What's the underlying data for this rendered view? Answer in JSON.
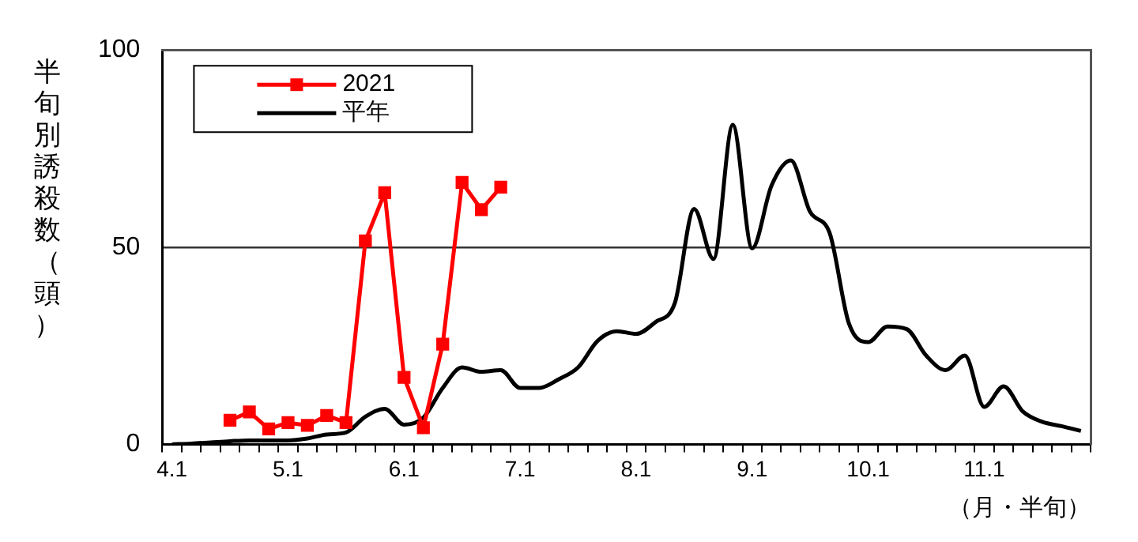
{
  "chart_data": {
    "type": "line",
    "ylabel": "半旬別誘殺数（頭）",
    "xlabel": "（月・半旬）",
    "categories": [
      "4.1",
      null,
      null,
      null,
      null,
      null,
      "5.1",
      null,
      null,
      null,
      null,
      null,
      "6.1",
      null,
      null,
      null,
      null,
      null,
      "7.1",
      null,
      null,
      null,
      null,
      null,
      "8.1",
      null,
      null,
      null,
      null,
      null,
      "9.1",
      null,
      null,
      null,
      null,
      null,
      "10.1",
      null,
      null,
      null,
      null,
      null,
      "11.1",
      null,
      null,
      null,
      null,
      null
    ],
    "series": [
      {
        "name": "2021",
        "color": "#ff0000",
        "marker": "square",
        "line_style": "solid",
        "values": [
          null,
          null,
          null,
          6.1,
          8.2,
          3.9,
          5.5,
          4.8,
          7.3,
          5.5,
          51.6,
          63.8,
          17,
          4.2,
          25.4,
          66.4,
          59.5,
          65.2,
          null,
          null,
          null,
          null,
          null,
          null,
          null,
          null,
          null,
          null,
          null,
          null,
          null,
          null,
          null,
          null,
          null,
          null,
          null,
          null,
          null,
          null,
          null,
          null,
          null,
          null,
          null,
          null,
          null,
          null
        ]
      },
      {
        "name": "平年",
        "color": "#000000",
        "marker": "none",
        "line_style": "solid",
        "values": [
          0,
          0.2,
          0.5,
          0.8,
          1,
          1,
          1,
          1.5,
          2.5,
          3,
          7,
          9,
          5,
          6.8,
          14.3,
          19.5,
          18.4,
          18.8,
          14.3,
          14.3,
          16.5,
          19.5,
          26.2,
          28.7,
          28,
          31,
          35.8,
          59.7,
          47,
          81,
          49.7,
          65.6,
          72,
          58.9,
          53.7,
          30.7,
          25.9,
          29.9,
          29.2,
          22.5,
          18.8,
          22.5,
          9.5,
          14.7,
          8.3,
          5.7,
          4.6,
          3.4
        ]
      }
    ],
    "ylim": [
      0,
      100
    ],
    "yticks": [
      0,
      50,
      100
    ],
    "grid": "y",
    "legend": "top left"
  }
}
